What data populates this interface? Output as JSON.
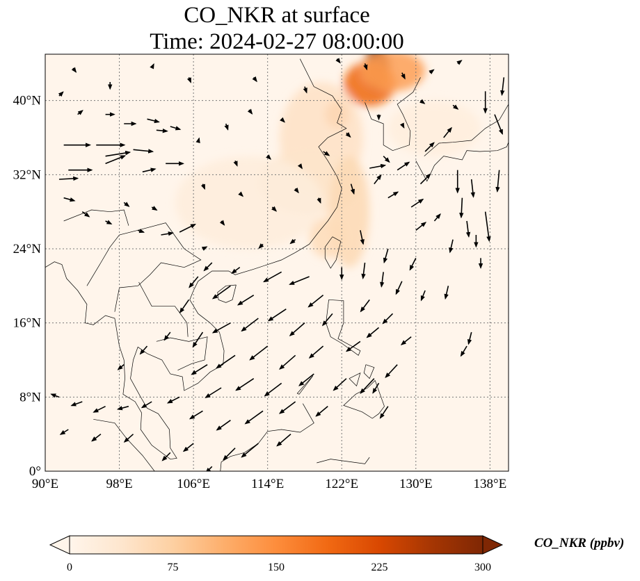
{
  "title": {
    "line1": "CO_NKR at surface",
    "line2": "Time: 2024-02-27 08:00:00"
  },
  "map": {
    "lon_range": [
      90,
      140
    ],
    "lat_range": [
      0,
      45
    ],
    "lon_ticks": [
      {
        "value": 90,
        "label": "90°E"
      },
      {
        "value": 98,
        "label": "98°E"
      },
      {
        "value": 106,
        "label": "106°E"
      },
      {
        "value": 114,
        "label": "114°E"
      },
      {
        "value": 122,
        "label": "122°E"
      },
      {
        "value": 130,
        "label": "130°E"
      },
      {
        "value": 138,
        "label": "138°E"
      }
    ],
    "lat_ticks": [
      {
        "value": 0,
        "label": "0°"
      },
      {
        "value": 8,
        "label": "8°N"
      },
      {
        "value": 16,
        "label": "16°N"
      },
      {
        "value": 24,
        "label": "24°N"
      },
      {
        "value": 32,
        "label": "32°N"
      },
      {
        "value": 40,
        "label": "40°N"
      }
    ],
    "gridlines": true,
    "background_color": "#fff5eb",
    "plumes": [
      {
        "lon": 125.8,
        "lat": 43.5,
        "rlon": 1.4,
        "rlat": 2.4,
        "value": 300
      },
      {
        "lon": 125.0,
        "lat": 41.8,
        "rlon": 2.8,
        "rlat": 2.4,
        "value": 190
      },
      {
        "lon": 127.5,
        "lat": 43.2,
        "rlon": 3.5,
        "rlat": 2.2,
        "value": 130
      },
      {
        "lon": 121.5,
        "lat": 38.5,
        "rlon": 1.3,
        "rlat": 1.5,
        "value": 140
      },
      {
        "lon": 119.8,
        "lat": 36.0,
        "rlon": 4.5,
        "rlat": 6.0,
        "value": 45
      },
      {
        "lon": 118.5,
        "lat": 31.2,
        "rlon": 5.5,
        "rlat": 3.5,
        "value": 40
      },
      {
        "lon": 122.8,
        "lat": 28.0,
        "rlon": 2.2,
        "rlat": 6.0,
        "value": 60
      },
      {
        "lon": 120.5,
        "lat": 25.2,
        "rlon": 2.0,
        "rlat": 2.2,
        "value": 55
      },
      {
        "lon": 112.0,
        "lat": 29.0,
        "rlon": 8.0,
        "rlat": 5.0,
        "value": 20
      },
      {
        "lon": 132.0,
        "lat": 37.0,
        "rlon": 5.0,
        "rlat": 3.0,
        "value": 18
      }
    ],
    "wind_vectors": [
      {
        "lon": 92.0,
        "lat": 35.2,
        "u": 2.7,
        "v": 0.0
      },
      {
        "lon": 95.5,
        "lat": 35.2,
        "u": 2.9,
        "v": 0.0
      },
      {
        "lon": 92.5,
        "lat": 32.5,
        "u": 2.4,
        "v": 0.0
      },
      {
        "lon": 91.5,
        "lat": 31.5,
        "u": 1.9,
        "v": 0.1
      },
      {
        "lon": 96.5,
        "lat": 34.0,
        "u": 2.5,
        "v": 0.4
      },
      {
        "lon": 99.5,
        "lat": 34.7,
        "u": 2.0,
        "v": -0.2
      },
      {
        "lon": 103.0,
        "lat": 33.2,
        "u": 1.8,
        "v": 0.0
      },
      {
        "lon": 100.5,
        "lat": 32.3,
        "u": 1.3,
        "v": 0.3
      },
      {
        "lon": 96.5,
        "lat": 33.2,
        "u": 2.0,
        "v": 0.8
      },
      {
        "lon": 101.0,
        "lat": 38.0,
        "u": 1.2,
        "v": -0.3
      },
      {
        "lon": 103.5,
        "lat": 37.2,
        "u": 1.0,
        "v": -0.3
      },
      {
        "lon": 92.0,
        "lat": 29.5,
        "u": 1.1,
        "v": -0.3
      },
      {
        "lon": 104.5,
        "lat": 25.8,
        "u": 1.6,
        "v": 0.8
      },
      {
        "lon": 102.5,
        "lat": 25.5,
        "u": 1.2,
        "v": 0.2
      },
      {
        "lon": 110.0,
        "lat": 20.0,
        "u": -1.8,
        "v": -1.3
      },
      {
        "lon": 112.5,
        "lat": 19.0,
        "u": -1.6,
        "v": -1.0
      },
      {
        "lon": 115.5,
        "lat": 21.5,
        "u": -1.8,
        "v": -1.0
      },
      {
        "lon": 118.5,
        "lat": 21.0,
        "u": -2.0,
        "v": -0.8
      },
      {
        "lon": 120.0,
        "lat": 19.0,
        "u": -1.5,
        "v": -1.2
      },
      {
        "lon": 116.0,
        "lat": 17.5,
        "u": -1.8,
        "v": -1.2
      },
      {
        "lon": 113.0,
        "lat": 16.5,
        "u": -1.7,
        "v": -1.3
      },
      {
        "lon": 110.0,
        "lat": 16.0,
        "u": -1.8,
        "v": -1.0
      },
      {
        "lon": 107.0,
        "lat": 15.0,
        "u": -1.0,
        "v": -1.5
      },
      {
        "lon": 118.0,
        "lat": 16.0,
        "u": -1.5,
        "v": -1.3
      },
      {
        "lon": 121.0,
        "lat": 17.0,
        "u": -1.0,
        "v": -1.2
      },
      {
        "lon": 114.0,
        "lat": 13.5,
        "u": -1.8,
        "v": -1.4
      },
      {
        "lon": 110.5,
        "lat": 12.5,
        "u": -1.9,
        "v": -1.3
      },
      {
        "lon": 107.5,
        "lat": 11.5,
        "u": -1.6,
        "v": -1.0
      },
      {
        "lon": 117.0,
        "lat": 12.5,
        "u": -1.6,
        "v": -1.4
      },
      {
        "lon": 120.0,
        "lat": 13.5,
        "u": -1.4,
        "v": -1.2
      },
      {
        "lon": 124.0,
        "lat": 14.0,
        "u": -1.4,
        "v": -1.0
      },
      {
        "lon": 126.0,
        "lat": 15.5,
        "u": -1.2,
        "v": -1.0
      },
      {
        "lon": 127.5,
        "lat": 17.0,
        "u": -1.0,
        "v": -1.0
      },
      {
        "lon": 125.0,
        "lat": 18.5,
        "u": -0.9,
        "v": -1.2
      },
      {
        "lon": 112.5,
        "lat": 10.0,
        "u": -1.8,
        "v": -1.2
      },
      {
        "lon": 109.0,
        "lat": 9.0,
        "u": -1.6,
        "v": -1.0
      },
      {
        "lon": 115.5,
        "lat": 9.5,
        "u": -1.7,
        "v": -1.3
      },
      {
        "lon": 119.0,
        "lat": 10.5,
        "u": -1.5,
        "v": -1.2
      },
      {
        "lon": 122.5,
        "lat": 10.0,
        "u": -1.3,
        "v": -1.2
      },
      {
        "lon": 125.5,
        "lat": 10.0,
        "u": -1.4,
        "v": -1.5
      },
      {
        "lon": 128.0,
        "lat": 11.5,
        "u": -1.2,
        "v": -1.3
      },
      {
        "lon": 113.5,
        "lat": 6.5,
        "u": -1.8,
        "v": -1.3
      },
      {
        "lon": 110.0,
        "lat": 5.5,
        "u": -1.4,
        "v": -1.0
      },
      {
        "lon": 117.0,
        "lat": 7.5,
        "u": -1.6,
        "v": -1.2
      },
      {
        "lon": 120.5,
        "lat": 7.0,
        "u": -1.2,
        "v": -1.0
      },
      {
        "lon": 113.0,
        "lat": 3.0,
        "u": -1.7,
        "v": -1.4
      },
      {
        "lon": 116.5,
        "lat": 4.0,
        "u": -1.4,
        "v": -1.2
      },
      {
        "lon": 110.5,
        "lat": 2.5,
        "u": -1.2,
        "v": -1.2
      },
      {
        "lon": 107.0,
        "lat": 6.5,
        "u": -1.3,
        "v": -0.8
      },
      {
        "lon": 104.5,
        "lat": 8.0,
        "u": -1.2,
        "v": -0.6
      },
      {
        "lon": 124.5,
        "lat": 22.5,
        "u": -0.2,
        "v": -1.6
      },
      {
        "lon": 124.0,
        "lat": 26.0,
        "u": 0.3,
        "v": -1.4
      },
      {
        "lon": 127.0,
        "lat": 24.0,
        "u": -0.4,
        "v": -1.4
      },
      {
        "lon": 130.0,
        "lat": 23.0,
        "u": -0.6,
        "v": -1.2
      },
      {
        "lon": 133.5,
        "lat": 20.0,
        "u": -0.3,
        "v": -1.3
      },
      {
        "lon": 131.0,
        "lat": 19.5,
        "u": -0.4,
        "v": -1.0
      },
      {
        "lon": 128.5,
        "lat": 20.5,
        "u": -0.6,
        "v": -1.3
      },
      {
        "lon": 126.5,
        "lat": 21.5,
        "u": -0.2,
        "v": -1.5
      },
      {
        "lon": 122.0,
        "lat": 22.0,
        "u": 0.0,
        "v": -1.2
      },
      {
        "lon": 134.5,
        "lat": 32.5,
        "u": 0.0,
        "v": -2.3
      },
      {
        "lon": 135.0,
        "lat": 29.5,
        "u": -0.1,
        "v": -2.0
      },
      {
        "lon": 136.0,
        "lat": 31.5,
        "u": 0.2,
        "v": -1.8
      },
      {
        "lon": 137.5,
        "lat": 28.0,
        "u": 0.4,
        "v": -3.0
      },
      {
        "lon": 139.0,
        "lat": 32.5,
        "u": -0.2,
        "v": -2.2
      },
      {
        "lon": 135.5,
        "lat": 27.0,
        "u": 0.2,
        "v": -1.6
      },
      {
        "lon": 134.0,
        "lat": 25.0,
        "u": -0.3,
        "v": -1.3
      },
      {
        "lon": 136.5,
        "lat": 25.5,
        "u": 0.0,
        "v": -1.2
      },
      {
        "lon": 137.0,
        "lat": 23.0,
        "u": 0.0,
        "v": -1.0
      },
      {
        "lon": 137.5,
        "lat": 41.0,
        "u": 0.0,
        "v": -2.2
      },
      {
        "lon": 139.5,
        "lat": 42.5,
        "u": -0.2,
        "v": -1.8
      },
      {
        "lon": 138.5,
        "lat": 38.5,
        "u": 0.8,
        "v": -2.0
      },
      {
        "lon": 128.0,
        "lat": 32.5,
        "u": 1.2,
        "v": 0.8
      },
      {
        "lon": 130.5,
        "lat": 31.0,
        "u": 1.0,
        "v": 1.0
      },
      {
        "lon": 129.5,
        "lat": 28.5,
        "u": 1.2,
        "v": 0.8
      },
      {
        "lon": 127.0,
        "lat": 29.5,
        "u": 1.0,
        "v": 0.6
      },
      {
        "lon": 125.5,
        "lat": 31.0,
        "u": 0.7,
        "v": 0.9
      },
      {
        "lon": 123.0,
        "lat": 31.0,
        "u": 0.3,
        "v": -1.0
      },
      {
        "lon": 125.0,
        "lat": 32.7,
        "u": 1.6,
        "v": 0.3
      },
      {
        "lon": 126.5,
        "lat": 34.0,
        "u": 0.6,
        "v": -0.6
      },
      {
        "lon": 131.0,
        "lat": 34.5,
        "u": 0.9,
        "v": 0.9
      },
      {
        "lon": 133.0,
        "lat": 36.0,
        "u": 0.8,
        "v": 1.0
      },
      {
        "lon": 136.0,
        "lat": 15.0,
        "u": -0.3,
        "v": -1.2
      },
      {
        "lon": 135.5,
        "lat": 13.5,
        "u": -0.6,
        "v": -1.0
      },
      {
        "lon": 129.5,
        "lat": 14.5,
        "u": -1.0,
        "v": -0.8
      },
      {
        "lon": 126.0,
        "lat": 9.5,
        "u": -0.6,
        "v": -1.0
      },
      {
        "lon": 127.0,
        "lat": 7.0,
        "u": -0.8,
        "v": -1.2
      },
      {
        "lon": 106.5,
        "lat": 21.0,
        "u": -0.9,
        "v": -1.1
      },
      {
        "lon": 108.0,
        "lat": 22.5,
        "u": -0.8,
        "v": -0.8
      },
      {
        "lon": 111.0,
        "lat": 22.0,
        "u": -0.8,
        "v": -0.6
      },
      {
        "lon": 113.5,
        "lat": 24.5,
        "u": -0.4,
        "v": -0.4
      },
      {
        "lon": 117.0,
        "lat": 25.0,
        "u": -0.5,
        "v": -0.4
      },
      {
        "lon": 105.5,
        "lat": 18.5,
        "u": -0.9,
        "v": -1.3
      },
      {
        "lon": 103.5,
        "lat": 15.0,
        "u": -0.6,
        "v": -0.8
      },
      {
        "lon": 101.0,
        "lat": 13.5,
        "u": -0.7,
        "v": -0.8
      },
      {
        "lon": 98.5,
        "lat": 11.5,
        "u": -0.6,
        "v": -0.5
      },
      {
        "lon": 96.5,
        "lat": 7.0,
        "u": -1.2,
        "v": -0.6
      },
      {
        "lon": 94.0,
        "lat": 7.5,
        "u": -1.1,
        "v": -0.4
      },
      {
        "lon": 91.5,
        "lat": 8.0,
        "u": -0.8,
        "v": 0.3
      },
      {
        "lon": 99.0,
        "lat": 7.0,
        "u": -1.1,
        "v": -0.3
      },
      {
        "lon": 101.5,
        "lat": 7.5,
        "u": -1.0,
        "v": -0.6
      },
      {
        "lon": 99.5,
        "lat": 4.0,
        "u": -0.9,
        "v": -0.8
      },
      {
        "lon": 96.0,
        "lat": 4.0,
        "u": -0.9,
        "v": -0.7
      },
      {
        "lon": 92.5,
        "lat": 4.5,
        "u": -0.8,
        "v": -0.5
      },
      {
        "lon": 103.5,
        "lat": 2.0,
        "u": -0.8,
        "v": -0.8
      },
      {
        "lon": 106.0,
        "lat": 3.0,
        "u": -1.0,
        "v": -0.8
      },
      {
        "lon": 108.0,
        "lat": 0.5,
        "u": -0.6,
        "v": -0.6
      },
      {
        "lon": 94.0,
        "lat": 28.0,
        "u": 0.7,
        "v": -0.5
      },
      {
        "lon": 96.5,
        "lat": 27.0,
        "u": 0.6,
        "v": -0.3
      },
      {
        "lon": 98.5,
        "lat": 29.0,
        "u": 0.5,
        "v": -0.4
      },
      {
        "lon": 101.5,
        "lat": 28.5,
        "u": 0.5,
        "v": -0.3
      },
      {
        "lon": 100.0,
        "lat": 26.0,
        "u": 0.6,
        "v": -0.2
      },
      {
        "lon": 107.0,
        "lat": 24.0,
        "u": 0.4,
        "v": 0.2
      },
      {
        "lon": 109.0,
        "lat": 27.0,
        "u": 0.3,
        "v": -0.4
      },
      {
        "lon": 111.0,
        "lat": 30.0,
        "u": 0.3,
        "v": -0.3
      },
      {
        "lon": 114.5,
        "lat": 28.5,
        "u": 0.4,
        "v": -0.4
      },
      {
        "lon": 107.0,
        "lat": 31.0,
        "u": 0.2,
        "v": -0.5
      },
      {
        "lon": 110.5,
        "lat": 33.5,
        "u": 0.2,
        "v": -0.5
      },
      {
        "lon": 114.0,
        "lat": 34.0,
        "u": 0.3,
        "v": -0.3
      },
      {
        "lon": 117.5,
        "lat": 33.0,
        "u": 0.2,
        "v": -0.3
      },
      {
        "lon": 106.5,
        "lat": 35.5,
        "u": 0.1,
        "v": 0.4
      },
      {
        "lon": 109.5,
        "lat": 37.5,
        "u": 0.2,
        "v": -0.6
      },
      {
        "lon": 112.0,
        "lat": 39.0,
        "u": 0.3,
        "v": -0.4
      },
      {
        "lon": 115.5,
        "lat": 38.0,
        "u": 0.3,
        "v": -0.3
      },
      {
        "lon": 118.0,
        "lat": 41.5,
        "u": 0.2,
        "v": -0.6
      },
      {
        "lon": 112.5,
        "lat": 42.5,
        "u": 0.3,
        "v": -0.4
      },
      {
        "lon": 105.5,
        "lat": 42.5,
        "u": 0.2,
        "v": -0.5
      },
      {
        "lon": 101.5,
        "lat": 43.5,
        "u": 0.2,
        "v": 0.4
      },
      {
        "lon": 97.0,
        "lat": 42.0,
        "u": 0.0,
        "v": -0.7
      },
      {
        "lon": 93.0,
        "lat": 43.5,
        "u": 0.3,
        "v": -0.4
      },
      {
        "lon": 91.5,
        "lat": 40.5,
        "u": 0.4,
        "v": 0.4
      },
      {
        "lon": 93.5,
        "lat": 38.5,
        "u": 0.5,
        "v": 0.4
      },
      {
        "lon": 96.5,
        "lat": 38.5,
        "u": 0.9,
        "v": 0.0
      },
      {
        "lon": 98.5,
        "lat": 37.5,
        "u": 1.2,
        "v": 0.0
      },
      {
        "lon": 102.0,
        "lat": 36.8,
        "u": 1.1,
        "v": -0.1
      },
      {
        "lon": 121.5,
        "lat": 44.5,
        "u": 0.3,
        "v": -0.4
      },
      {
        "lon": 124.5,
        "lat": 44.0,
        "u": 0.2,
        "v": -0.6
      },
      {
        "lon": 128.5,
        "lat": 43.0,
        "u": 0.3,
        "v": -0.6
      },
      {
        "lon": 131.5,
        "lat": 43.0,
        "u": 0.4,
        "v": 0.3
      },
      {
        "lon": 134.5,
        "lat": 44.0,
        "u": 0.4,
        "v": 0.3
      },
      {
        "lon": 130.5,
        "lat": 40.0,
        "u": 0.4,
        "v": -0.3
      },
      {
        "lon": 126.0,
        "lat": 38.5,
        "u": 0.0,
        "v": -0.5
      },
      {
        "lon": 128.5,
        "lat": 37.5,
        "u": 0.2,
        "v": -0.4
      },
      {
        "lon": 134.0,
        "lat": 39.5,
        "u": 0.5,
        "v": -0.4
      },
      {
        "lon": 120.0,
        "lat": 34.5,
        "u": 0.6,
        "v": -0.4
      },
      {
        "lon": 122.5,
        "lat": 36.5,
        "u": 0.4,
        "v": -0.4
      },
      {
        "lon": 130.0,
        "lat": 26.0,
        "u": 1.0,
        "v": 0.8
      },
      {
        "lon": 132.0,
        "lat": 27.0,
        "u": 0.6,
        "v": 0.7
      },
      {
        "lon": 119.5,
        "lat": 29.5,
        "u": 0.2,
        "v": -0.5
      },
      {
        "lon": 117.0,
        "lat": 30.5,
        "u": 0.3,
        "v": -0.4
      }
    ]
  },
  "colorbar": {
    "label": "CO_NKR (ppbv)",
    "min": 0,
    "max": 300,
    "ticks": [
      {
        "value": 0,
        "label": "0"
      },
      {
        "value": 75,
        "label": "75"
      },
      {
        "value": 150,
        "label": "150"
      },
      {
        "value": 225,
        "label": "225"
      },
      {
        "value": 300,
        "label": "300"
      }
    ],
    "colors": [
      "#fff5eb",
      "#fee6ce",
      "#fdd0a2",
      "#fdae6b",
      "#fd8d3c",
      "#f16913",
      "#d94801",
      "#a63603",
      "#7f2704"
    ]
  }
}
